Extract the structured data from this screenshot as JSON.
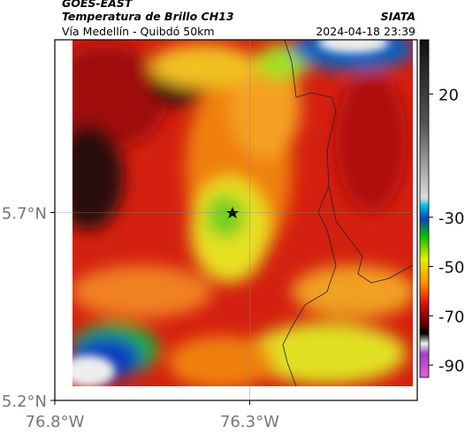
{
  "header": {
    "satellite": "GOES-EAST",
    "title": "Temperatura de Brillo CH13",
    "source": "SIATA",
    "subtitle": "Vía Medellín - Quibdó 50km",
    "datetime": "2024-04-18 23:39"
  },
  "map": {
    "xlim": [
      -76.8,
      -75.87
    ],
    "ylim": [
      5.2,
      6.16
    ],
    "xticks": [
      {
        "value": -76.8,
        "label": "76.8°W"
      },
      {
        "value": -76.3,
        "label": "76.3°W"
      }
    ],
    "yticks": [
      {
        "value": 5.7,
        "label": "5.7°N"
      },
      {
        "value": 5.2,
        "label": "5.2°N"
      }
    ]
  },
  "colorbar": {
    "lim": [
      42,
      -95
    ],
    "ticks": [
      20,
      -30,
      -50,
      -70,
      -90
    ]
  }
}
